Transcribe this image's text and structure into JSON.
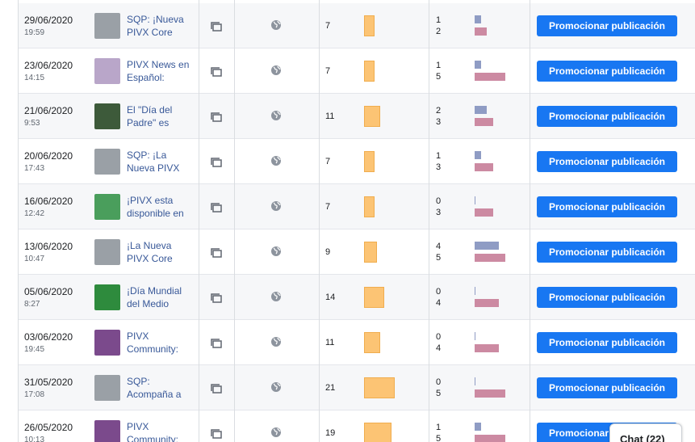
{
  "rows": [
    {
      "date": "29/06/2020",
      "time": "19:59",
      "title": [
        "SQP: ¡Nueva",
        "PIVX Core"
      ],
      "reach": 7,
      "clicks": 1,
      "reactions": 2
    },
    {
      "date": "23/06/2020",
      "time": "14:15",
      "title": [
        "PIVX News en",
        "Español:"
      ],
      "reach": 7,
      "clicks": 1,
      "reactions": 5
    },
    {
      "date": "21/06/2020",
      "time": "9:53",
      "title": [
        "El \"Día del",
        "Padre\" es"
      ],
      "reach": 11,
      "clicks": 2,
      "reactions": 3
    },
    {
      "date": "20/06/2020",
      "time": "17:43",
      "title": [
        "SQP: ¡La",
        "Nueva PIVX"
      ],
      "reach": 7,
      "clicks": 1,
      "reactions": 3
    },
    {
      "date": "16/06/2020",
      "time": "12:42",
      "title": [
        "¡PIVX esta",
        "disponible en"
      ],
      "reach": 7,
      "clicks": 0,
      "reactions": 3
    },
    {
      "date": "13/06/2020",
      "time": "10:47",
      "title": [
        "¡La Nueva",
        "PIVX Core"
      ],
      "reach": 9,
      "clicks": 4,
      "reactions": 5
    },
    {
      "date": "05/06/2020",
      "time": "8:27",
      "title": [
        "¡Día Mundial",
        "del Medio"
      ],
      "reach": 14,
      "clicks": 0,
      "reactions": 4
    },
    {
      "date": "03/06/2020",
      "time": "19:45",
      "title": [
        "PIVX",
        "Community:"
      ],
      "reach": 11,
      "clicks": 0,
      "reactions": 4
    },
    {
      "date": "31/05/2020",
      "time": "17:08",
      "title": [
        "SQP:",
        "Acompaña a"
      ],
      "reach": 21,
      "clicks": 0,
      "reactions": 5
    },
    {
      "date": "26/05/2020",
      "time": "10:13",
      "title": [
        "PIVX",
        "Community:"
      ],
      "reach": 19,
      "clicks": 1,
      "reactions": 5
    }
  ],
  "promote_label": "Promocionar publicación",
  "chat": "Chat (22)"
}
